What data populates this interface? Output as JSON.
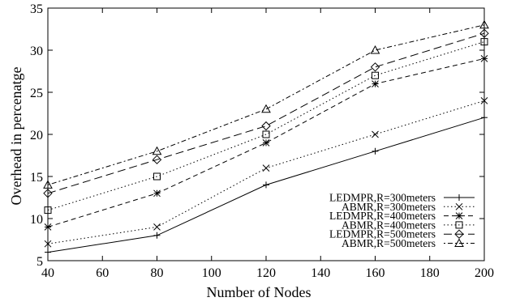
{
  "chart_data": {
    "type": "line",
    "xlabel": "Number of  Nodes",
    "ylabel": "Overhead in percenatge",
    "xlim": [
      40,
      200
    ],
    "ylim": [
      5,
      35
    ],
    "xticks": [
      "40",
      "60",
      "80",
      "100",
      "120",
      "140",
      "160",
      "180",
      "200"
    ],
    "yticks": [
      "5",
      "10",
      "15",
      "20",
      "25",
      "30",
      "35"
    ],
    "grid": false,
    "legend_position": "bottom-right",
    "x": [
      40,
      80,
      120,
      160,
      200
    ],
    "series": [
      {
        "name": "LEDMPR,R=300meters",
        "values": [
          6,
          8,
          14,
          18,
          22
        ],
        "dash": "solid",
        "marker": "plus"
      },
      {
        "name": "ABMR,R=300meters",
        "values": [
          7,
          9,
          16,
          20,
          24
        ],
        "dash": "dotted",
        "marker": "x"
      },
      {
        "name": "LEDMPR,R=400meters",
        "values": [
          9,
          13,
          19,
          26,
          29
        ],
        "dash": "dashed",
        "marker": "asterisk"
      },
      {
        "name": "ABMR,R=400meters",
        "values": [
          11,
          15,
          20,
          27,
          31
        ],
        "dash": "dotted",
        "marker": "square"
      },
      {
        "name": "LEDMPR,R=500meters",
        "values": [
          13,
          17,
          21,
          28,
          32
        ],
        "dash": "longdash",
        "marker": "diamond"
      },
      {
        "name": "ABMR,R=500meters",
        "values": [
          14,
          18,
          23,
          30,
          33
        ],
        "dash": "dashdot",
        "marker": "triangle"
      }
    ]
  }
}
